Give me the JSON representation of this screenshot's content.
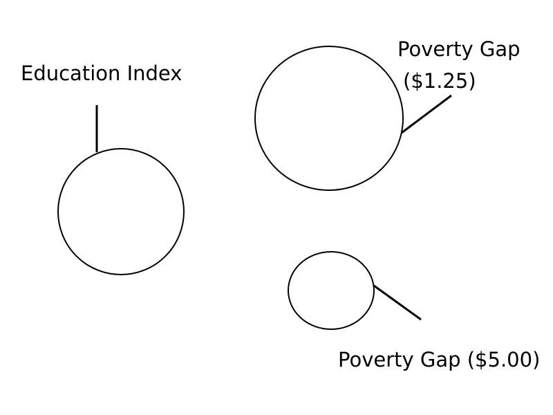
{
  "labels": {
    "education_index": "Education Index",
    "poverty_gap_125_line1": "Poverty Gap",
    "poverty_gap_125_line2": "($1.25)",
    "poverty_gap_500": "Poverty Gap ($5.00)"
  },
  "colors": {
    "stroke": "#000000",
    "fill": "#ffffff",
    "background": "#ffffff"
  }
}
